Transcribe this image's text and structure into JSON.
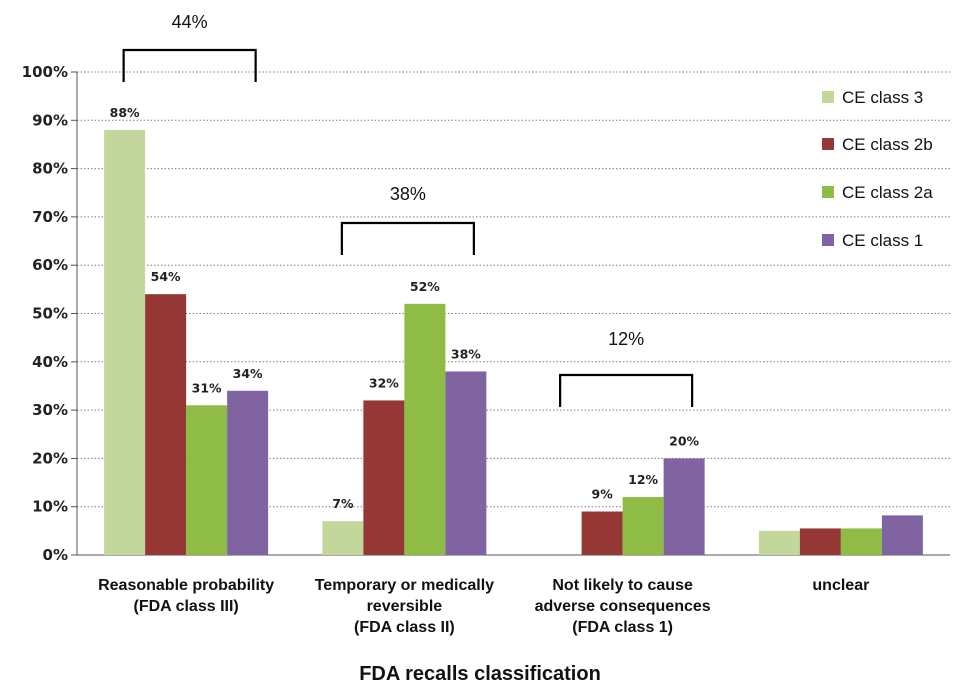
{
  "chart_data": {
    "type": "bar",
    "categories": [
      "Reasonable probability\n(FDA class III)",
      "Temporary or medically\nreversible\n(FDA class II)",
      "Not likely to cause\nadverse  consequences\n(FDA class 1)",
      "unclear"
    ],
    "series": [
      {
        "name": "CE class 3",
        "color": "#c3d69b",
        "values": [
          88,
          7,
          0,
          5
        ],
        "labels": [
          "88%",
          "7%",
          "",
          ""
        ]
      },
      {
        "name": "CE class 2b",
        "color": "#953735",
        "values": [
          54,
          32,
          9,
          5.5
        ],
        "labels": [
          "54%",
          "32%",
          "9%",
          ""
        ]
      },
      {
        "name": "CE class 2a",
        "color": "#8fbc44",
        "values": [
          31,
          52,
          12,
          5.5
        ],
        "labels": [
          "31%",
          "52%",
          "12%",
          ""
        ]
      },
      {
        "name": "CE class 1",
        "color": "#8064a2",
        "values": [
          34,
          38,
          20,
          8.2
        ],
        "labels": [
          "34%",
          "38%",
          "20%",
          ""
        ]
      }
    ],
    "yticks": [
      "0%",
      "10%",
      "20%",
      "30%",
      "40%",
      "50%",
      "60%",
      "70%",
      "80%",
      "90%",
      "100%"
    ],
    "ylim": [
      0,
      100
    ],
    "xlabel": "FDA recalls classification",
    "ylabel": "",
    "title": "",
    "legend_position": "right",
    "grid": "horizontal dotted",
    "brackets": [
      {
        "label": "44%",
        "category": 0
      },
      {
        "label": "38%",
        "category": 1
      },
      {
        "label": "12%",
        "category": 2
      }
    ]
  }
}
